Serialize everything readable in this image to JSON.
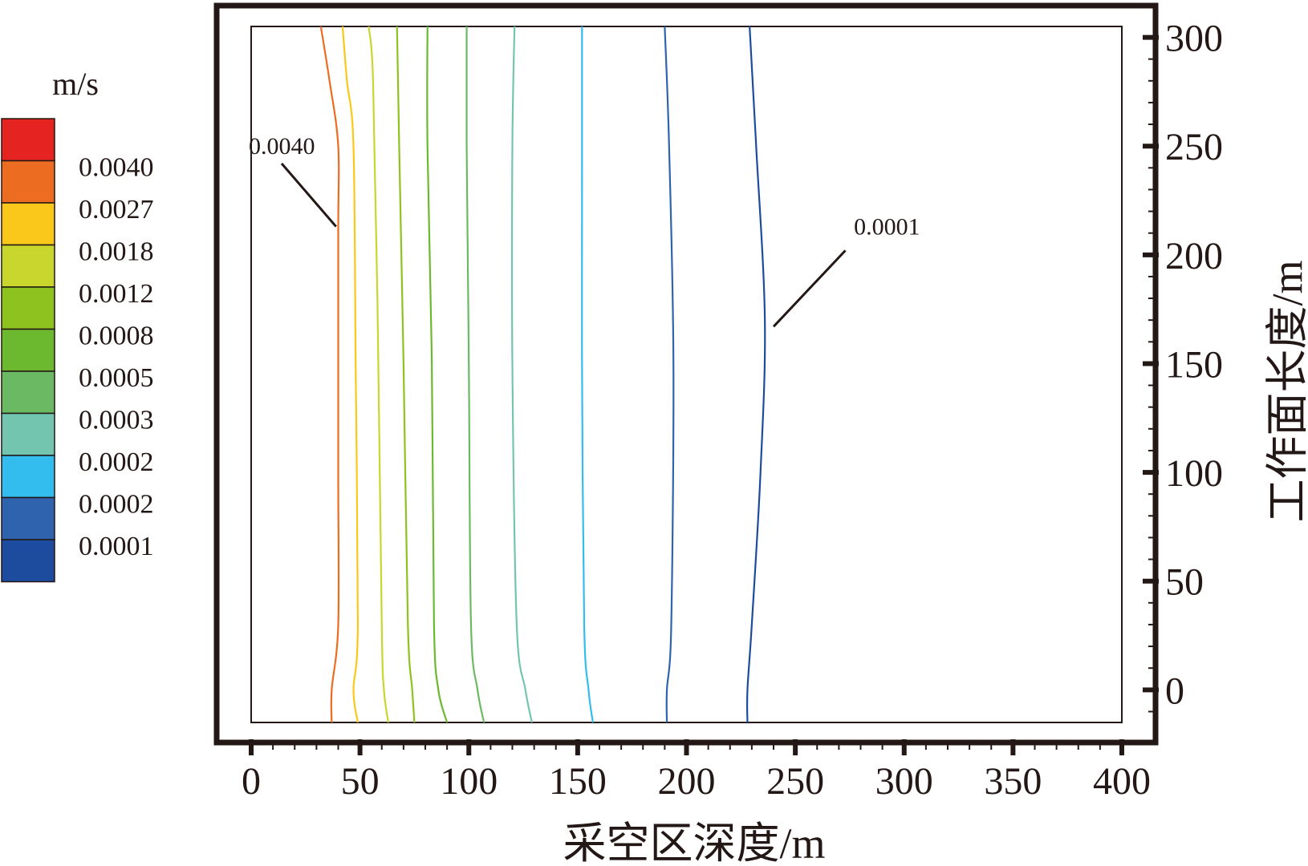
{
  "chart_data": {
    "type": "contour",
    "title": "",
    "xlabel": "采空区深度/m",
    "ylabel": "工作面长度/m",
    "xlim": [
      0,
      400
    ],
    "ylim": [
      -15,
      305
    ],
    "x_ticks": [
      0,
      50,
      100,
      150,
      200,
      250,
      300,
      350,
      400
    ],
    "y_ticks": [
      0,
      50,
      100,
      150,
      200,
      250,
      300
    ],
    "x_tick_labels": [
      "0",
      "50",
      "100",
      "150",
      "200",
      "250",
      "300",
      "350",
      "400"
    ],
    "y_tick_labels": [
      "0",
      "50",
      "100",
      "150",
      "200",
      "250",
      "300"
    ],
    "y_axis_side": "right",
    "legend": {
      "unit": "m/s",
      "placement": "left",
      "levels": [
        {
          "label": "",
          "color": "#e52421"
        },
        {
          "label": "0.0040",
          "color": "#ec6c21"
        },
        {
          "label": "0.0027",
          "color": "#f9c81a"
        },
        {
          "label": "0.0018",
          "color": "#c8d62e"
        },
        {
          "label": "0.0012",
          "color": "#8ec31f"
        },
        {
          "label": "0.0008",
          "color": "#6cb82f"
        },
        {
          "label": "0.0005",
          "color": "#6bba63"
        },
        {
          "label": "0.0003",
          "color": "#73c5b0"
        },
        {
          "label": "0.0002",
          "color": "#33bdee"
        },
        {
          "label": "0.0002",
          "color": "#2f63ae"
        },
        {
          "label": "0.0001",
          "color": "#1d4b9e"
        }
      ]
    },
    "contours": [
      {
        "color": "#ec6c21",
        "points": [
          [
            32,
            305
          ],
          [
            36,
            280
          ],
          [
            40,
            250
          ],
          [
            40,
            210
          ],
          [
            40,
            100
          ],
          [
            40,
            30
          ],
          [
            37,
            0
          ],
          [
            37,
            -15
          ]
        ]
      },
      {
        "color": "#f9c81a",
        "points": [
          [
            42,
            305
          ],
          [
            44,
            280
          ],
          [
            47,
            250
          ],
          [
            48,
            150
          ],
          [
            49,
            30
          ],
          [
            47,
            0
          ],
          [
            49,
            -15
          ]
        ]
      },
      {
        "color": "#c8d62e",
        "points": [
          [
            54,
            305
          ],
          [
            56,
            280
          ],
          [
            58,
            180
          ],
          [
            60,
            30
          ],
          [
            61,
            0
          ],
          [
            63,
            -15
          ]
        ]
      },
      {
        "color": "#8ec31f",
        "points": [
          [
            67,
            305
          ],
          [
            68,
            250
          ],
          [
            70,
            150
          ],
          [
            72,
            30
          ],
          [
            74,
            0
          ],
          [
            75,
            -15
          ]
        ]
      },
      {
        "color": "#6cb82f",
        "points": [
          [
            81,
            305
          ],
          [
            81,
            250
          ],
          [
            83,
            150
          ],
          [
            84,
            30
          ],
          [
            86,
            0
          ],
          [
            90,
            -15
          ]
        ]
      },
      {
        "color": "#6bba63",
        "points": [
          [
            99,
            305
          ],
          [
            99,
            250
          ],
          [
            100,
            150
          ],
          [
            101,
            30
          ],
          [
            104,
            0
          ],
          [
            107,
            -15
          ]
        ]
      },
      {
        "color": "#73c5b0",
        "points": [
          [
            121,
            305
          ],
          [
            120,
            250
          ],
          [
            120,
            150
          ],
          [
            122,
            30
          ],
          [
            126,
            0
          ],
          [
            129,
            -15
          ]
        ]
      },
      {
        "color": "#33bdee",
        "points": [
          [
            152,
            305
          ],
          [
            152,
            250
          ],
          [
            152,
            150
          ],
          [
            153,
            30
          ],
          [
            155,
            0
          ],
          [
            157,
            -15
          ]
        ]
      },
      {
        "color": "#2f63ae",
        "points": [
          [
            190,
            305
          ],
          [
            192,
            250
          ],
          [
            194,
            150
          ],
          [
            193,
            30
          ],
          [
            191,
            0
          ],
          [
            191,
            -15
          ]
        ]
      },
      {
        "color": "#1d4b9e",
        "points": [
          [
            229,
            305
          ],
          [
            232,
            250
          ],
          [
            236,
            170
          ],
          [
            234,
            100
          ],
          [
            230,
            30
          ],
          [
            228,
            0
          ],
          [
            228,
            -15
          ]
        ]
      }
    ],
    "annotations": [
      {
        "text": "0.0040",
        "x": 0,
        "y": 250,
        "leader": [
          [
            14,
            242
          ],
          [
            39,
            213
          ]
        ]
      },
      {
        "text": "0.0001",
        "x": 278,
        "y": 213,
        "leader": [
          [
            273,
            202
          ],
          [
            240,
            167
          ]
        ]
      }
    ]
  }
}
